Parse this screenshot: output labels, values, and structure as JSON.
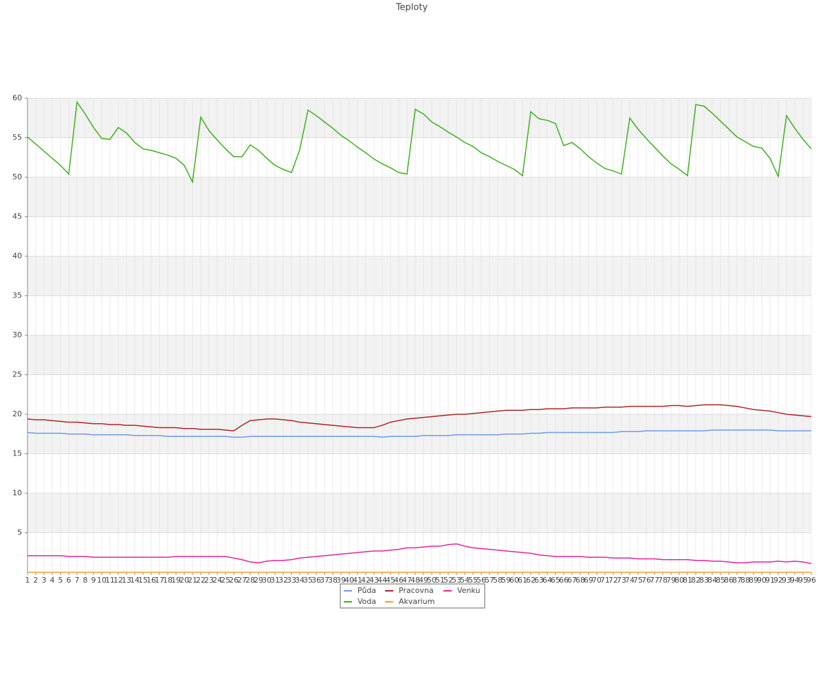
{
  "chart_data": {
    "type": "line",
    "title": "Teploty",
    "categories": [
      "1",
      "2",
      "3",
      "4",
      "5",
      "6",
      "7",
      "8",
      "9",
      "10",
      "11",
      "12",
      "13",
      "14",
      "15",
      "16",
      "17",
      "18",
      "19",
      "20",
      "21",
      "22",
      "23",
      "24",
      "25",
      "26",
      "27",
      "28",
      "29",
      "30",
      "31",
      "32",
      "33",
      "34",
      "35",
      "36",
      "37",
      "38",
      "39",
      "40",
      "41",
      "42",
      "43",
      "44",
      "45",
      "46",
      "47",
      "48",
      "49",
      "50",
      "51",
      "52",
      "53",
      "54",
      "55",
      "56",
      "57",
      "58",
      "59",
      "60",
      "61",
      "62",
      "63",
      "64",
      "65",
      "66",
      "67",
      "68",
      "69",
      "70",
      "71",
      "72",
      "73",
      "74",
      "75",
      "76",
      "77",
      "78",
      "79",
      "80",
      "81",
      "82",
      "83",
      "84",
      "85",
      "86",
      "87",
      "88",
      "89",
      "90",
      "91",
      "92",
      "93",
      "94",
      "95",
      "96"
    ],
    "ylim": [
      0,
      60
    ],
    "yticks": [
      5,
      10,
      15,
      20,
      25,
      30,
      35,
      40,
      45,
      50,
      55,
      60
    ],
    "grid": true,
    "legend": "bottom",
    "series": [
      {
        "name": "Půda",
        "color": "#6a9be8",
        "values": [
          17.7,
          17.6,
          17.6,
          17.6,
          17.6,
          17.5,
          17.5,
          17.5,
          17.4,
          17.4,
          17.4,
          17.4,
          17.4,
          17.3,
          17.3,
          17.3,
          17.3,
          17.2,
          17.2,
          17.2,
          17.2,
          17.2,
          17.2,
          17.2,
          17.2,
          17.1,
          17.1,
          17.2,
          17.2,
          17.2,
          17.2,
          17.2,
          17.2,
          17.2,
          17.2,
          17.2,
          17.2,
          17.2,
          17.2,
          17.2,
          17.2,
          17.2,
          17.2,
          17.1,
          17.2,
          17.2,
          17.2,
          17.2,
          17.3,
          17.3,
          17.3,
          17.3,
          17.4,
          17.4,
          17.4,
          17.4,
          17.4,
          17.4,
          17.5,
          17.5,
          17.5,
          17.6,
          17.6,
          17.7,
          17.7,
          17.7,
          17.7,
          17.7,
          17.7,
          17.7,
          17.7,
          17.7,
          17.8,
          17.8,
          17.8,
          17.9,
          17.9,
          17.9,
          17.9,
          17.9,
          17.9,
          17.9,
          17.9,
          18.0,
          18.0,
          18.0,
          18.0,
          18.0,
          18.0,
          18.0,
          18.0,
          17.9,
          17.9,
          17.9,
          17.9,
          17.9
        ]
      },
      {
        "name": "Pracovna",
        "color": "#b22222",
        "values": [
          19.4,
          19.3,
          19.3,
          19.2,
          19.1,
          19.0,
          19.0,
          18.9,
          18.8,
          18.8,
          18.7,
          18.7,
          18.6,
          18.6,
          18.5,
          18.4,
          18.3,
          18.3,
          18.3,
          18.2,
          18.2,
          18.1,
          18.1,
          18.1,
          18.0,
          17.9,
          18.6,
          19.2,
          19.3,
          19.4,
          19.4,
          19.3,
          19.2,
          19.0,
          18.9,
          18.8,
          18.7,
          18.6,
          18.5,
          18.4,
          18.3,
          18.3,
          18.3,
          18.6,
          19.0,
          19.2,
          19.4,
          19.5,
          19.6,
          19.7,
          19.8,
          19.9,
          20.0,
          20.0,
          20.1,
          20.2,
          20.3,
          20.4,
          20.5,
          20.5,
          20.5,
          20.6,
          20.6,
          20.7,
          20.7,
          20.7,
          20.8,
          20.8,
          20.8,
          20.8,
          20.9,
          20.9,
          20.9,
          21.0,
          21.0,
          21.0,
          21.0,
          21.0,
          21.1,
          21.1,
          21.0,
          21.1,
          21.2,
          21.2,
          21.2,
          21.1,
          21.0,
          20.8,
          20.6,
          20.5,
          20.4,
          20.2,
          20.0,
          19.9,
          19.8,
          19.7
        ]
      },
      {
        "name": "Venku",
        "color": "#e8209a",
        "values": [
          2.1,
          2.1,
          2.1,
          2.1,
          2.1,
          2.0,
          2.0,
          2.0,
          1.9,
          1.9,
          1.9,
          1.9,
          1.9,
          1.9,
          1.9,
          1.9,
          1.9,
          1.9,
          2.0,
          2.0,
          2.0,
          2.0,
          2.0,
          2.0,
          2.0,
          1.8,
          1.6,
          1.3,
          1.2,
          1.4,
          1.5,
          1.5,
          1.6,
          1.8,
          1.9,
          2.0,
          2.1,
          2.2,
          2.3,
          2.4,
          2.5,
          2.6,
          2.7,
          2.7,
          2.8,
          2.9,
          3.1,
          3.1,
          3.2,
          3.3,
          3.3,
          3.5,
          3.6,
          3.3,
          3.1,
          3.0,
          2.9,
          2.8,
          2.7,
          2.6,
          2.5,
          2.4,
          2.2,
          2.1,
          2.0,
          2.0,
          2.0,
          2.0,
          1.9,
          1.9,
          1.9,
          1.8,
          1.8,
          1.8,
          1.7,
          1.7,
          1.7,
          1.6,
          1.6,
          1.6,
          1.6,
          1.5,
          1.5,
          1.4,
          1.4,
          1.3,
          1.2,
          1.2,
          1.3,
          1.3,
          1.3,
          1.4,
          1.3,
          1.4,
          1.3,
          1.1
        ]
      },
      {
        "name": "Voda",
        "color": "#3cb01c",
        "values": [
          55.1,
          54.2,
          53.3,
          52.4,
          51.5,
          50.4,
          59.5,
          58.0,
          56.3,
          54.9,
          54.8,
          56.3,
          55.6,
          54.4,
          53.6,
          53.4,
          53.1,
          52.8,
          52.4,
          51.5,
          49.4,
          57.6,
          55.9,
          54.7,
          53.6,
          52.6,
          52.6,
          54.1,
          53.4,
          52.4,
          51.5,
          51.0,
          50.6,
          53.5,
          58.5,
          57.8,
          57.0,
          56.2,
          55.3,
          54.6,
          53.8,
          53.1,
          52.3,
          51.7,
          51.2,
          50.6,
          50.4,
          58.6,
          58.0,
          57.0,
          56.4,
          55.7,
          55.1,
          54.4,
          53.9,
          53.1,
          52.6,
          52.0,
          51.5,
          51.0,
          50.2,
          58.3,
          57.4,
          57.2,
          56.8,
          54.0,
          54.4,
          53.6,
          52.6,
          51.8,
          51.1,
          50.8,
          50.4,
          57.5,
          56.1,
          54.9,
          53.8,
          52.7,
          51.7,
          51.0,
          50.2,
          59.2,
          59.0,
          58.1,
          57.1,
          56.1,
          55.1,
          54.5,
          53.9,
          53.7,
          52.4,
          50.1,
          57.8,
          56.2,
          54.8,
          53.6
        ]
      },
      {
        "name": "Akvarium",
        "color": "#f0a020",
        "values": [
          0,
          0,
          0,
          0,
          0,
          0,
          0,
          0,
          0,
          0,
          0,
          0,
          0,
          0,
          0,
          0,
          0,
          0,
          0,
          0,
          0,
          0,
          0,
          0,
          0,
          0,
          0,
          0,
          0,
          0,
          0,
          0,
          0,
          0,
          0,
          0,
          0,
          0,
          0,
          0,
          0,
          0,
          0,
          0,
          0,
          0,
          0,
          0,
          0,
          0,
          0,
          0,
          0,
          0,
          0,
          0,
          0,
          0,
          0,
          0,
          0,
          0,
          0,
          0,
          0,
          0,
          0,
          0,
          0,
          0,
          0,
          0,
          0,
          0,
          0,
          0,
          0,
          0,
          0,
          0,
          0,
          0,
          0,
          0,
          0,
          0,
          0,
          0,
          0,
          0,
          0,
          0,
          0,
          0,
          0,
          0
        ]
      }
    ]
  }
}
